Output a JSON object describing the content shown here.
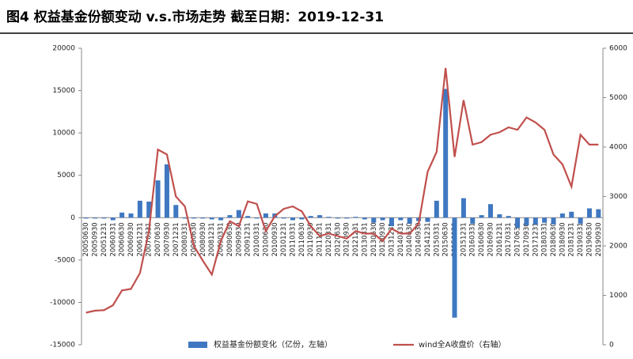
{
  "chart_data": {
    "type": "bar",
    "title": "图4 权益基金份额变动 v.s.市场走势   截至日期：2019-12-31",
    "categories": [
      "20050630",
      "20050930",
      "20051231",
      "20060331",
      "20060630",
      "20060930",
      "20061231",
      "20070331",
      "20070630",
      "20070930",
      "20071231",
      "20080331",
      "20080630",
      "20080930",
      "20081231",
      "20090331",
      "20090630",
      "20090930",
      "20091231",
      "20100331",
      "20100630",
      "20100930",
      "20101231",
      "20110331",
      "20110630",
      "20110930",
      "20111231",
      "20120331",
      "20120630",
      "20120930",
      "20121231",
      "20130331",
      "20130630",
      "20130930",
      "20131231",
      "20140331",
      "20140630",
      "20140930",
      "20141231",
      "20150331",
      "20150630",
      "20150930",
      "20151231",
      "20160331",
      "20160630",
      "20160930",
      "20161231",
      "20170331",
      "20170630",
      "20170930",
      "20171231",
      "20180331",
      "20180630",
      "20180930",
      "20181231",
      "20190331",
      "20190630",
      "20190930"
    ],
    "series": [
      {
        "name": "权益基金份额变化（亿份，左轴）",
        "type": "bar",
        "color": "#3f78c1",
        "values": [
          -100,
          -100,
          -100,
          -300,
          600,
          500,
          2000,
          1900,
          4400,
          6300,
          1500,
          -100,
          -100,
          -100,
          -200,
          -300,
          300,
          900,
          200,
          -100,
          500,
          500,
          -100,
          -300,
          -200,
          200,
          300,
          100,
          -100,
          -100,
          100,
          -200,
          -600,
          -300,
          -1000,
          -300,
          -700,
          -400,
          -500,
          2000,
          15200,
          -11800,
          2300,
          -700,
          300,
          1600,
          400,
          200,
          -1200,
          -900,
          -800,
          -600,
          -800,
          500,
          700,
          -700,
          1100,
          1000
        ]
      },
      {
        "name": "wind全A收盘价（右轴）",
        "type": "line",
        "axis": "y2",
        "color": "#c0504d",
        "values": [
          650,
          690,
          700,
          800,
          1100,
          1130,
          1450,
          2300,
          3950,
          3850,
          3000,
          2800,
          2000,
          1700,
          1420,
          2100,
          2500,
          2400,
          2900,
          2850,
          2300,
          2600,
          2750,
          2800,
          2700,
          2400,
          2200,
          2250,
          2200,
          2150,
          2300,
          2250,
          2250,
          2100,
          2350,
          2250,
          2250,
          2450,
          3500,
          3900,
          5600,
          3800,
          4950,
          4050,
          4100,
          4250,
          4300,
          4400,
          4350,
          4600,
          4500,
          4350,
          3850,
          3650,
          3200,
          4250,
          4050,
          4050
        ]
      }
    ],
    "ylim": [
      -15000,
      20000
    ],
    "yticks": [
      -15000,
      -10000,
      -5000,
      0,
      5000,
      10000,
      15000,
      20000
    ],
    "y2lim": [
      0,
      6000
    ],
    "y2ticks": [
      0,
      1000,
      2000,
      3000,
      4000,
      5000,
      6000
    ]
  }
}
